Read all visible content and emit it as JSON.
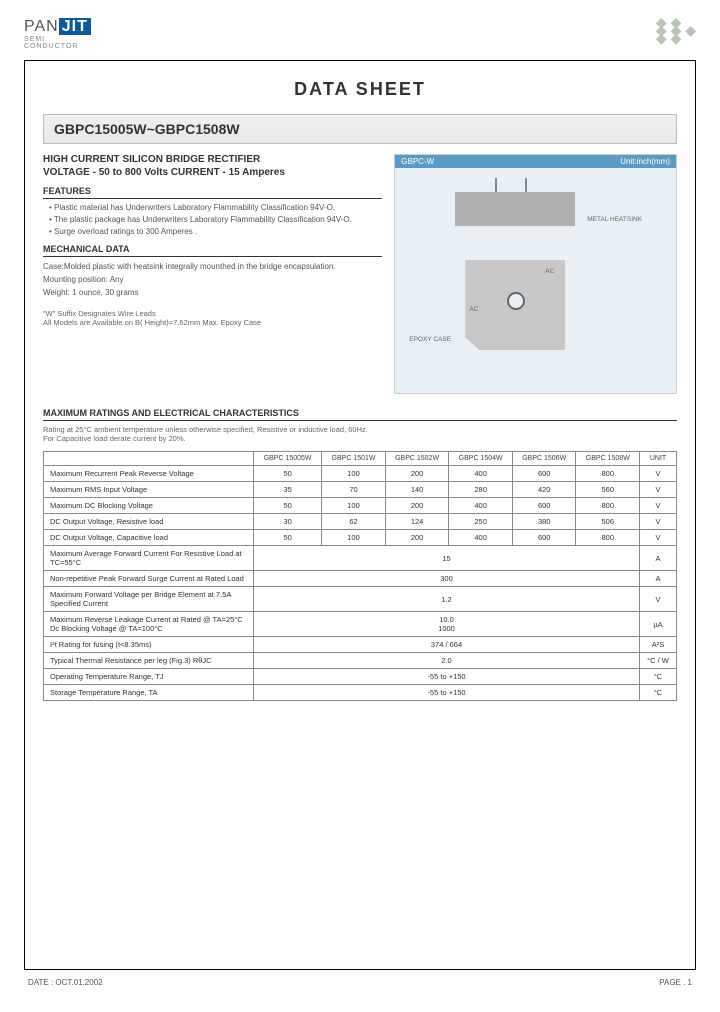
{
  "logo": {
    "brand_a": "PAN",
    "brand_b": "JIT",
    "sub": "SEMI\nCONDUCTOR"
  },
  "sheet_title": "DATA  SHEET",
  "part_range": "GBPC15005W~GBPC1508W",
  "subtitle": "HIGH CURRENT SILICON BRIDGE RECTIFIER",
  "voltage_line": "VOLTAGE - 50 to 800 Volts  CURRENT - 15 Amperes",
  "features": {
    "heading": "FEATURES",
    "items": [
      "Plastic material has Underwriters Laboratory Flammability Classification 94V-O.",
      "The plastic package has Underwriters Laboratory Flammability Classification 94V-O.",
      "Surge overload ratings to 300 Amperes ."
    ]
  },
  "mechanical": {
    "heading": "MECHANICAL DATA",
    "case": "Case:Molded plastic with heatsink integrally mounthed in the bridge encapsulation.",
    "mount": "Mounting position: Any",
    "weight": "Weight: 1 ounce, 30 grams"
  },
  "notes": {
    "l1": "\"W\" Suffix Designates Wire Leads",
    "l2": "All Models are Available on B( Height)=7.62mm Max. Epoxy Case"
  },
  "package": {
    "label": "GBPC-W",
    "unit": "Unit:inch(mm)",
    "metal": "METAL HEATSINK",
    "epoxy": "EPOXY CASE"
  },
  "ratings": {
    "heading": "MAXIMUM RATINGS AND ELECTRICAL CHARACTERISTICS",
    "note1": "Rating at 25°C ambient temperature unless otherwise specified, Resistive or inductive load, 60Hz.",
    "note2": "For Capacitive load derate current by 20%.",
    "columns": [
      "GBPC 15005W",
      "GBPC 1501W",
      "GBPC 1502W",
      "GBPC 1504W",
      "GBPC 1506W",
      "GBPC 1508W",
      "UNIT"
    ],
    "rows": [
      {
        "param": "Maximum Recurrent Peak Reverse Voltage",
        "cells": [
          "50",
          "100",
          "200",
          "400",
          "600",
          "800",
          "V"
        ]
      },
      {
        "param": "Maximum RMS Input Voltage",
        "cells": [
          "35",
          "70",
          "140",
          "280",
          "420",
          "560",
          "V"
        ]
      },
      {
        "param": "Maximum DC Blocking Voltage",
        "cells": [
          "50",
          "100",
          "200",
          "400",
          "600",
          "800",
          "V"
        ]
      },
      {
        "param": "DC Output Voltage, Resistive load",
        "cells": [
          "30",
          "62",
          "124",
          "250",
          "380",
          "506",
          "V"
        ]
      },
      {
        "param": "DC Output Voltage, Capacitive load",
        "cells": [
          "50",
          "100",
          "200",
          "400",
          "600",
          "800",
          "V"
        ]
      },
      {
        "param": "Maximum Average Forward Current For Resistive Load at TC=55°C",
        "span": "15",
        "unit": "A"
      },
      {
        "param": "Non-repetitive Peak Forward Surge Current at Rated Load",
        "span": "300",
        "unit": "A"
      },
      {
        "param": "Maximum Forward Voltage per Bridge Element at 7.5A Specified Current",
        "span": "1.2",
        "unit": "V"
      },
      {
        "param": "Maximum Reverse Leakage Current at Rated @ TA=25°C\nDc Blocking Voltage @ TA=100°C",
        "span": "10.0\n1000",
        "unit": "µA"
      },
      {
        "param": "I²t Rating for fusing (t<8.35ms)",
        "span": "374 / 664",
        "unit": "A²S"
      },
      {
        "param": "Typical Thermal Resistance per leg (Fig.3) RθJC",
        "span": "2.0",
        "unit": "°C / W"
      },
      {
        "param": "Operating Temperature Range, TJ",
        "span": "-55 to +150",
        "unit": "°C"
      },
      {
        "param": "Storage Temperature Range, TA",
        "span": "-55 to +150",
        "unit": "°C"
      }
    ]
  },
  "footer": {
    "date": "DATE : OCT.01.2002",
    "page": "PAGE .  1"
  },
  "colors": {
    "brand_blue": "#0a5a9c",
    "pkg_bg": "#e8f0f5",
    "pkg_head": "#5a9bc4"
  }
}
